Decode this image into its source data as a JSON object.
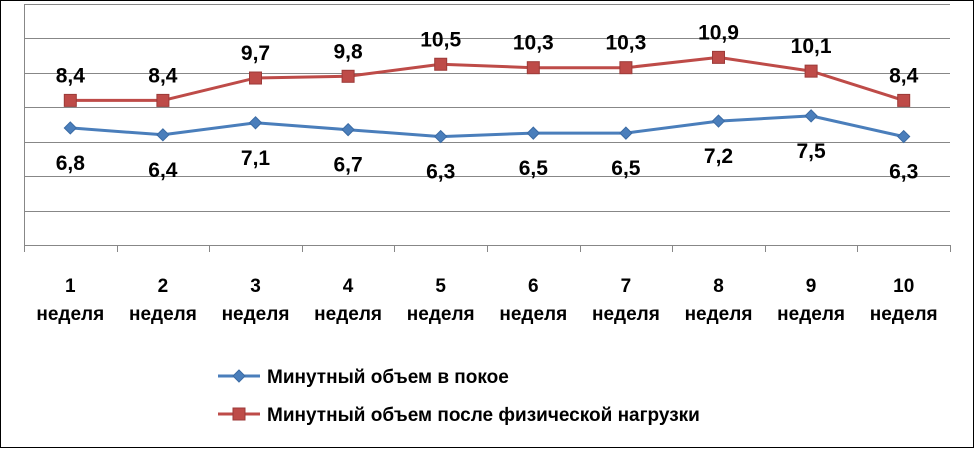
{
  "chart_data": {
    "type": "line",
    "categories": [
      [
        "1",
        "неделя"
      ],
      [
        "2",
        "неделя"
      ],
      [
        "3",
        "неделя"
      ],
      [
        "4",
        "неделя"
      ],
      [
        "5",
        "неделя"
      ],
      [
        "6",
        "неделя"
      ],
      [
        "7",
        "неделя"
      ],
      [
        "8",
        "неделя"
      ],
      [
        "9",
        "неделя"
      ],
      [
        "10",
        "неделя"
      ]
    ],
    "series": [
      {
        "name": "Минутный объем в покое",
        "values": [
          6.8,
          6.4,
          7.1,
          6.7,
          6.3,
          6.5,
          6.5,
          7.2,
          7.5,
          6.3
        ],
        "labels": [
          "6,8",
          "6,4",
          "7,1",
          "6,7",
          "6,3",
          "6,5",
          "6,5",
          "7,2",
          "7,5",
          "6,3"
        ],
        "color": "#4a7ebb",
        "marker": "diamond"
      },
      {
        "name": "Минутный объем после физической нагрузки",
        "values": [
          8.4,
          8.4,
          9.7,
          9.8,
          10.5,
          10.3,
          10.3,
          10.9,
          10.1,
          8.4
        ],
        "labels": [
          "8,4",
          "8,4",
          "9,7",
          "9,8",
          "10,5",
          "10,3",
          "10,3",
          "10,9",
          "10,1",
          "8,4"
        ],
        "color": "#be4b48",
        "marker": "square"
      }
    ],
    "ylim": [
      0,
      14
    ],
    "grid": true,
    "legend": "bottom"
  }
}
